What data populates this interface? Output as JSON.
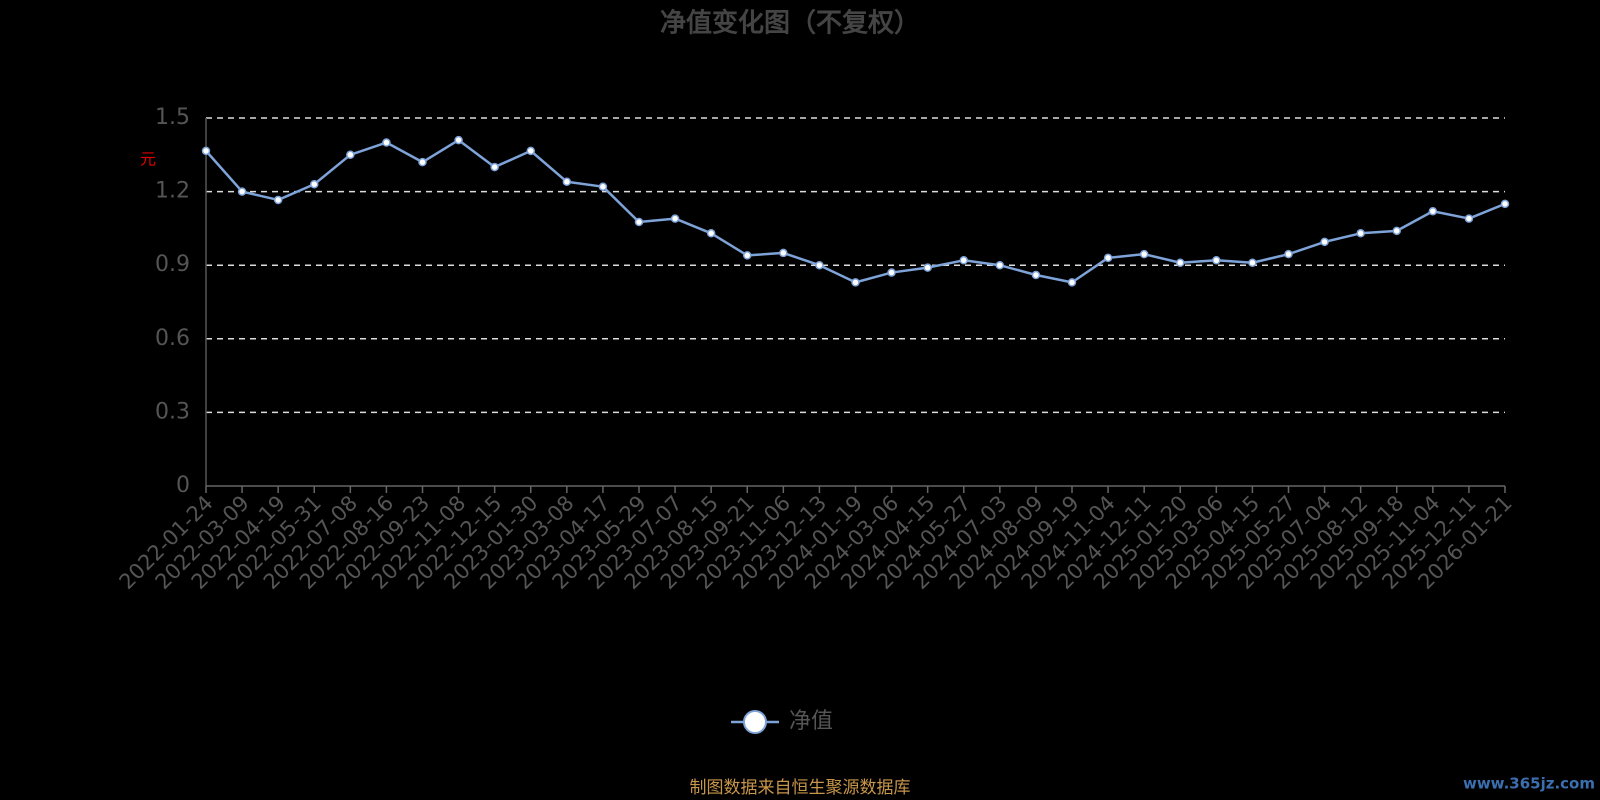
{
  "chart_data": {
    "type": "line",
    "title": "净值变化图（不复权）",
    "y_label": "元",
    "categories": [
      "2022-01-24",
      "2022-03-09",
      "2022-04-19",
      "2022-05-31",
      "2022-07-08",
      "2022-08-16",
      "2022-09-23",
      "2022-11-08",
      "2022-12-15",
      "2023-01-30",
      "2023-03-08",
      "2023-04-17",
      "2023-05-29",
      "2023-07-07",
      "2023-08-15",
      "2023-09-21",
      "2023-11-06",
      "2023-12-13",
      "2024-01-19",
      "2024-03-06",
      "2024-04-15",
      "2024-05-27",
      "2024-07-03",
      "2024-08-09",
      "2024-09-19",
      "2024-11-04",
      "2024-12-11",
      "2025-01-20",
      "2025-03-06",
      "2025-04-15",
      "2025-05-27",
      "2025-07-04",
      "2025-08-12",
      "2025-09-18",
      "2025-11-04",
      "2025-12-11",
      "2026-01-21"
    ],
    "series": [
      {
        "name": "净值",
        "color": "#7ea3d8",
        "values": [
          1.366,
          1.2,
          1.166,
          1.23,
          1.35,
          1.4,
          1.32,
          1.41,
          1.3,
          1.366,
          1.24,
          1.22,
          1.076,
          1.09,
          1.03,
          0.94,
          0.95,
          0.9,
          0.83,
          0.87,
          0.89,
          0.92,
          0.9,
          0.86,
          0.83,
          0.93,
          0.945,
          0.91,
          0.92,
          0.91,
          0.945,
          0.995,
          1.03,
          1.04,
          1.12,
          1.09,
          1.15
        ]
      }
    ],
    "ylim": [
      0,
      1.5
    ],
    "yticks": [
      0,
      0.3,
      0.6,
      0.9,
      1.2,
      1.5
    ],
    "grid": true,
    "source": "制图数据来自恒生聚源数据库",
    "watermark": "www.365jz.com"
  }
}
